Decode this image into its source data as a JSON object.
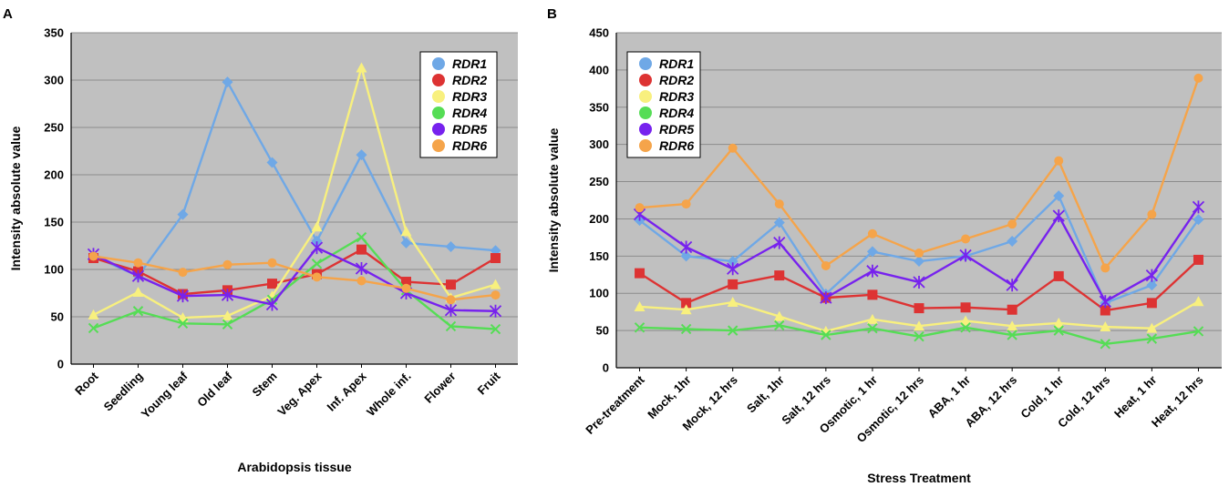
{
  "chart_data": [
    {
      "panel": "A",
      "type": "line",
      "xlabel": "Arabidopsis tissue",
      "ylabel": "Intensity absolute value",
      "ylim": [
        0,
        350
      ],
      "yticks": [
        0,
        50,
        100,
        150,
        200,
        250,
        300,
        350
      ],
      "grid": "horizontal",
      "legend_position": "top-right",
      "categories": [
        "Root",
        "Seedling",
        "Young leaf",
        "Old leaf",
        "Stem",
        "Veg. Apex",
        "Inf. Apex",
        "Whole inf.",
        "Flower",
        "Fruit"
      ],
      "series": [
        {
          "name": "RDR1",
          "color": "#6fa8e6",
          "marker": "diamond",
          "values": [
            114,
            93,
            158,
            298,
            213,
            130,
            221,
            128,
            124,
            120
          ]
        },
        {
          "name": "RDR2",
          "color": "#dd3333",
          "marker": "square",
          "values": [
            112,
            98,
            74,
            78,
            85,
            95,
            121,
            87,
            84,
            112
          ]
        },
        {
          "name": "RDR3",
          "color": "#f8f07e",
          "marker": "triangle",
          "values": [
            52,
            76,
            49,
            51,
            72,
            145,
            313,
            140,
            70,
            84
          ]
        },
        {
          "name": "RDR4",
          "color": "#55dd55",
          "marker": "x",
          "values": [
            38,
            56,
            43,
            42,
            68,
            106,
            134,
            78,
            40,
            37
          ]
        },
        {
          "name": "RDR5",
          "color": "#7722ee",
          "marker": "asterisk",
          "values": [
            116,
            93,
            72,
            73,
            63,
            123,
            101,
            75,
            57,
            56
          ]
        },
        {
          "name": "RDR6",
          "color": "#f5a44a",
          "marker": "circle",
          "values": [
            114,
            107,
            97,
            105,
            107,
            92,
            88,
            80,
            68,
            73
          ]
        }
      ]
    },
    {
      "panel": "B",
      "type": "line",
      "xlabel": "Stress Treatment",
      "ylabel": "Intensity absolute value",
      "ylim": [
        0,
        450
      ],
      "yticks": [
        0,
        50,
        100,
        150,
        200,
        250,
        300,
        350,
        400,
        450
      ],
      "grid": "horizontal",
      "legend_position": "top-left",
      "categories": [
        "Pre-treatment",
        "Mock, 1hr",
        "Mock, 12 hrs",
        "Salt, 1hr",
        "Salt, 12 hrs",
        "Osmotic, 1 hr",
        "Osmotic, 12 hrs",
        "ABA, 1 hr",
        "ABA, 12 hrs",
        "Cold, 1 hr",
        "Cold, 12 hrs",
        "Heat, 1 hr",
        "Heat, 12 hrs"
      ],
      "series": [
        {
          "name": "RDR1",
          "color": "#6fa8e6",
          "marker": "diamond",
          "values": [
            198,
            150,
            143,
            195,
            99,
            156,
            143,
            150,
            170,
            231,
            87,
            111,
            199
          ]
        },
        {
          "name": "RDR2",
          "color": "#dd3333",
          "marker": "square",
          "values": [
            127,
            87,
            112,
            124,
            94,
            98,
            80,
            81,
            78,
            123,
            77,
            87,
            145
          ]
        },
        {
          "name": "RDR3",
          "color": "#f8f07e",
          "marker": "triangle",
          "values": [
            82,
            78,
            88,
            69,
            49,
            65,
            56,
            63,
            56,
            60,
            55,
            53,
            89
          ]
        },
        {
          "name": "RDR4",
          "color": "#55dd55",
          "marker": "x",
          "values": [
            54,
            52,
            50,
            57,
            44,
            53,
            42,
            54,
            44,
            50,
            32,
            39,
            49
          ]
        },
        {
          "name": "RDR5",
          "color": "#7722ee",
          "marker": "asterisk",
          "values": [
            206,
            162,
            133,
            168,
            94,
            130,
            115,
            151,
            111,
            204,
            89,
            124,
            216
          ]
        },
        {
          "name": "RDR6",
          "color": "#f5a44a",
          "marker": "circle",
          "values": [
            215,
            220,
            295,
            220,
            137,
            180,
            154,
            173,
            193,
            278,
            134,
            206,
            389
          ]
        }
      ]
    }
  ]
}
